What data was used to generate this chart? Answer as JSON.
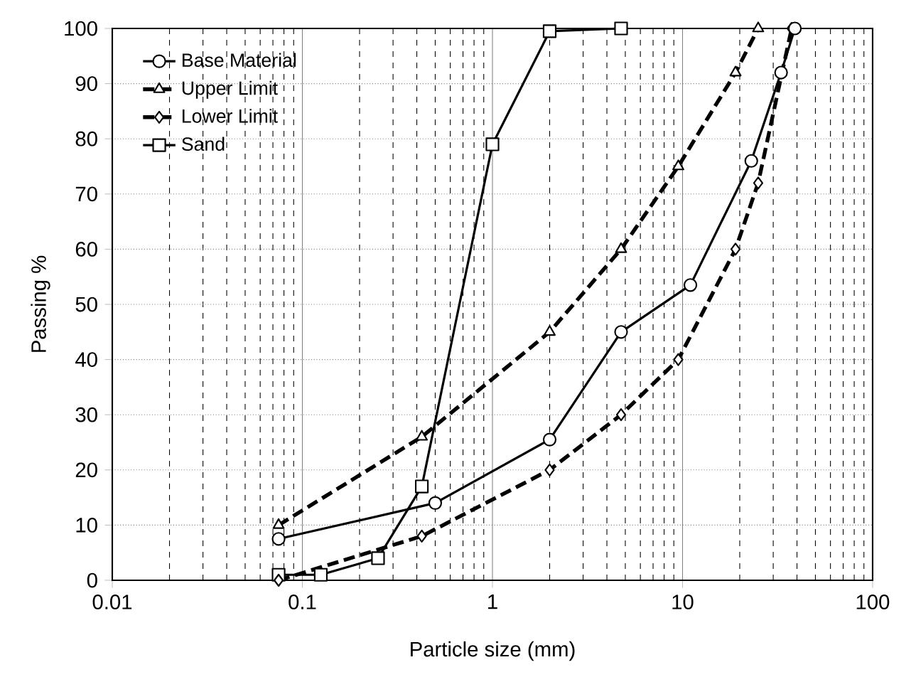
{
  "chart_data": {
    "type": "line",
    "xlabel": "Particle size (mm)",
    "ylabel": "Passing %",
    "log": "x",
    "xlim": [
      0.01,
      100
    ],
    "xticks": [
      0.01,
      0.1,
      1,
      10,
      100
    ],
    "ylim": [
      0,
      100
    ],
    "yticks": [
      0,
      10,
      20,
      30,
      40,
      50,
      60,
      70,
      80,
      90,
      100
    ],
    "grid": true,
    "legend": "top left",
    "series": [
      {
        "name": "Base Material",
        "color": "#000000",
        "marker": "circle",
        "line_style": "solid",
        "x": [
          0.075,
          0.5,
          2,
          4.75,
          11,
          23,
          33,
          39
        ],
        "values": [
          7.5,
          14,
          25.5,
          45,
          53.5,
          76,
          92,
          100
        ]
      },
      {
        "name": "Upper Limit",
        "color": "#000000",
        "marker": "triangle",
        "line_style": "dashed",
        "x": [
          0.075,
          0.425,
          2,
          4.75,
          9.5,
          19,
          25
        ],
        "values": [
          10,
          26,
          45,
          60,
          75,
          92,
          100
        ]
      },
      {
        "name": "Lower Limit",
        "color": "#000000",
        "marker": "diamond",
        "line_style": "dashed",
        "x": [
          0.075,
          0.425,
          2,
          4.75,
          9.5,
          19,
          25,
          37.5
        ],
        "values": [
          0,
          8,
          20,
          30,
          40,
          60,
          72,
          100
        ]
      },
      {
        "name": "Sand",
        "color": "#000000",
        "marker": "square",
        "line_style": "solid",
        "x": [
          0.075,
          0.125,
          0.25,
          0.425,
          1,
          2,
          4.75
        ],
        "values": [
          1,
          1,
          4,
          17,
          79,
          99.5,
          100
        ]
      }
    ]
  }
}
